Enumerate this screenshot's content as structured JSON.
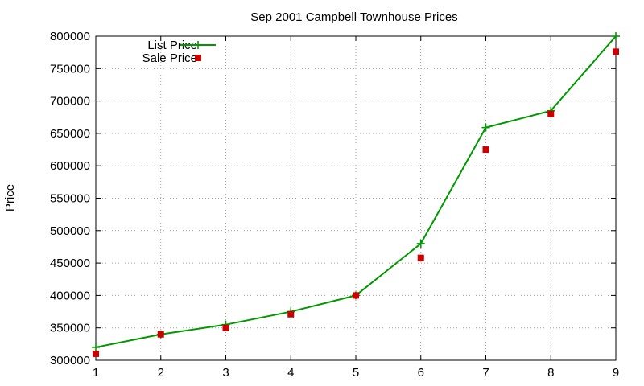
{
  "chart_data": {
    "type": "line",
    "title": "Sep 2001 Campbell Townhouse Prices",
    "xlabel": "",
    "ylabel": "Price",
    "xlim": [
      1,
      9
    ],
    "ylim": [
      300000,
      800000
    ],
    "xticks": [
      "1",
      "2",
      "3",
      "4",
      "5",
      "6",
      "7",
      "8",
      "9"
    ],
    "yticks": [
      "300000",
      "350000",
      "400000",
      "450000",
      "500000",
      "550000",
      "600000",
      "650000",
      "700000",
      "750000",
      "800000"
    ],
    "grid": true,
    "legend_position": "top-left",
    "x": [
      1,
      2,
      3,
      4,
      5,
      6,
      7,
      8,
      9
    ],
    "series": [
      {
        "name": "List Price",
        "style": "lines+points",
        "marker": "plus",
        "color": "#009900",
        "values": [
          320000,
          340000,
          355000,
          375000,
          400000,
          480000,
          659000,
          685000,
          800000
        ]
      },
      {
        "name": "Sale Price",
        "style": "points",
        "marker": "square",
        "color": "#cc0000",
        "values": [
          310000,
          340000,
          350000,
          371000,
          400000,
          458000,
          625000,
          680000,
          776000
        ]
      }
    ]
  }
}
